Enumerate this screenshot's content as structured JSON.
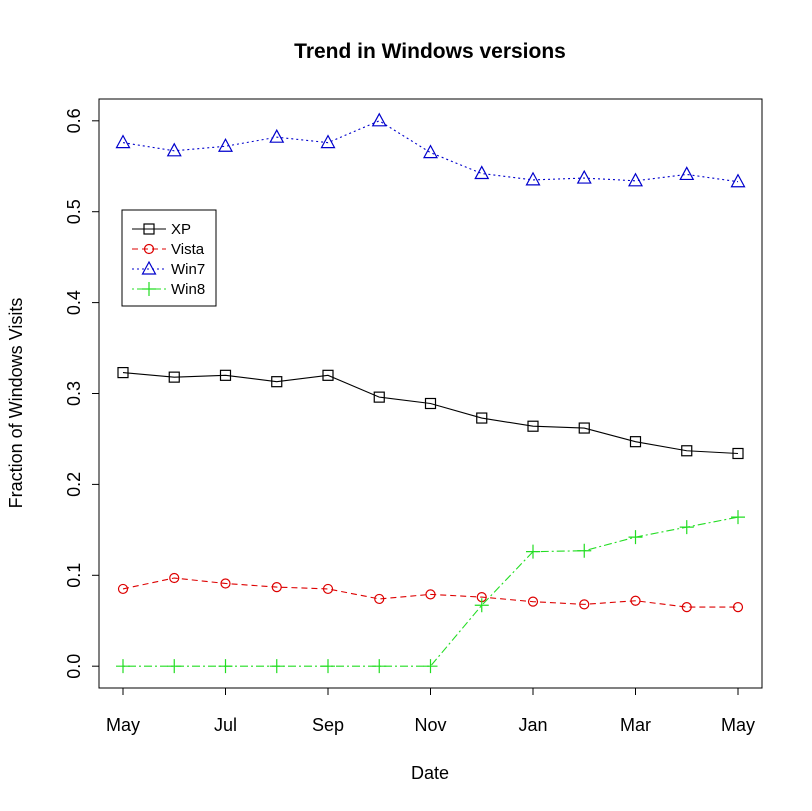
{
  "chart_data": {
    "type": "line",
    "title": "Trend in Windows versions",
    "xlabel": "Date",
    "ylabel": "Fraction of Windows Visits",
    "x": [
      "2012-05",
      "2012-06",
      "2012-07",
      "2012-08",
      "2012-09",
      "2012-10",
      "2012-11",
      "2012-12",
      "2013-01",
      "2013-02",
      "2013-03",
      "2013-04",
      "2013-05"
    ],
    "xtick_labels": [
      "May",
      "Jul",
      "Sep",
      "Nov",
      "Jan",
      "Mar",
      "May"
    ],
    "ylim": [
      -0.024,
      0.624
    ],
    "yticks": [
      "0.0",
      "0.1",
      "0.2",
      "0.3",
      "0.4",
      "0.5",
      "0.6"
    ],
    "legend_position": "top-left",
    "grid": false,
    "series": [
      {
        "name": "XP",
        "color": "#000000",
        "marker": "square",
        "line": "solid",
        "values": [
          0.323,
          0.318,
          0.32,
          0.313,
          0.32,
          0.296,
          0.289,
          0.273,
          0.264,
          0.262,
          0.247,
          0.237,
          0.234
        ]
      },
      {
        "name": "Vista",
        "color": "#dd0000",
        "marker": "circle",
        "line": "dashed",
        "values": [
          0.085,
          0.097,
          0.091,
          0.087,
          0.085,
          0.074,
          0.079,
          0.076,
          0.071,
          0.068,
          0.072,
          0.065,
          0.065
        ]
      },
      {
        "name": "Win7",
        "color": "#0000cc",
        "marker": "triangle",
        "line": "dotted",
        "values": [
          0.576,
          0.567,
          0.572,
          0.582,
          0.576,
          0.6,
          0.565,
          0.542,
          0.535,
          0.537,
          0.534,
          0.541,
          0.533
        ]
      },
      {
        "name": "Win8",
        "color": "#22dd22",
        "marker": "plus",
        "line": "dotdash",
        "values": [
          0.0,
          0.0,
          0.0,
          0.0,
          0.0,
          0.0,
          0.0,
          0.067,
          0.126,
          0.127,
          0.142,
          0.153,
          0.164
        ]
      }
    ]
  }
}
